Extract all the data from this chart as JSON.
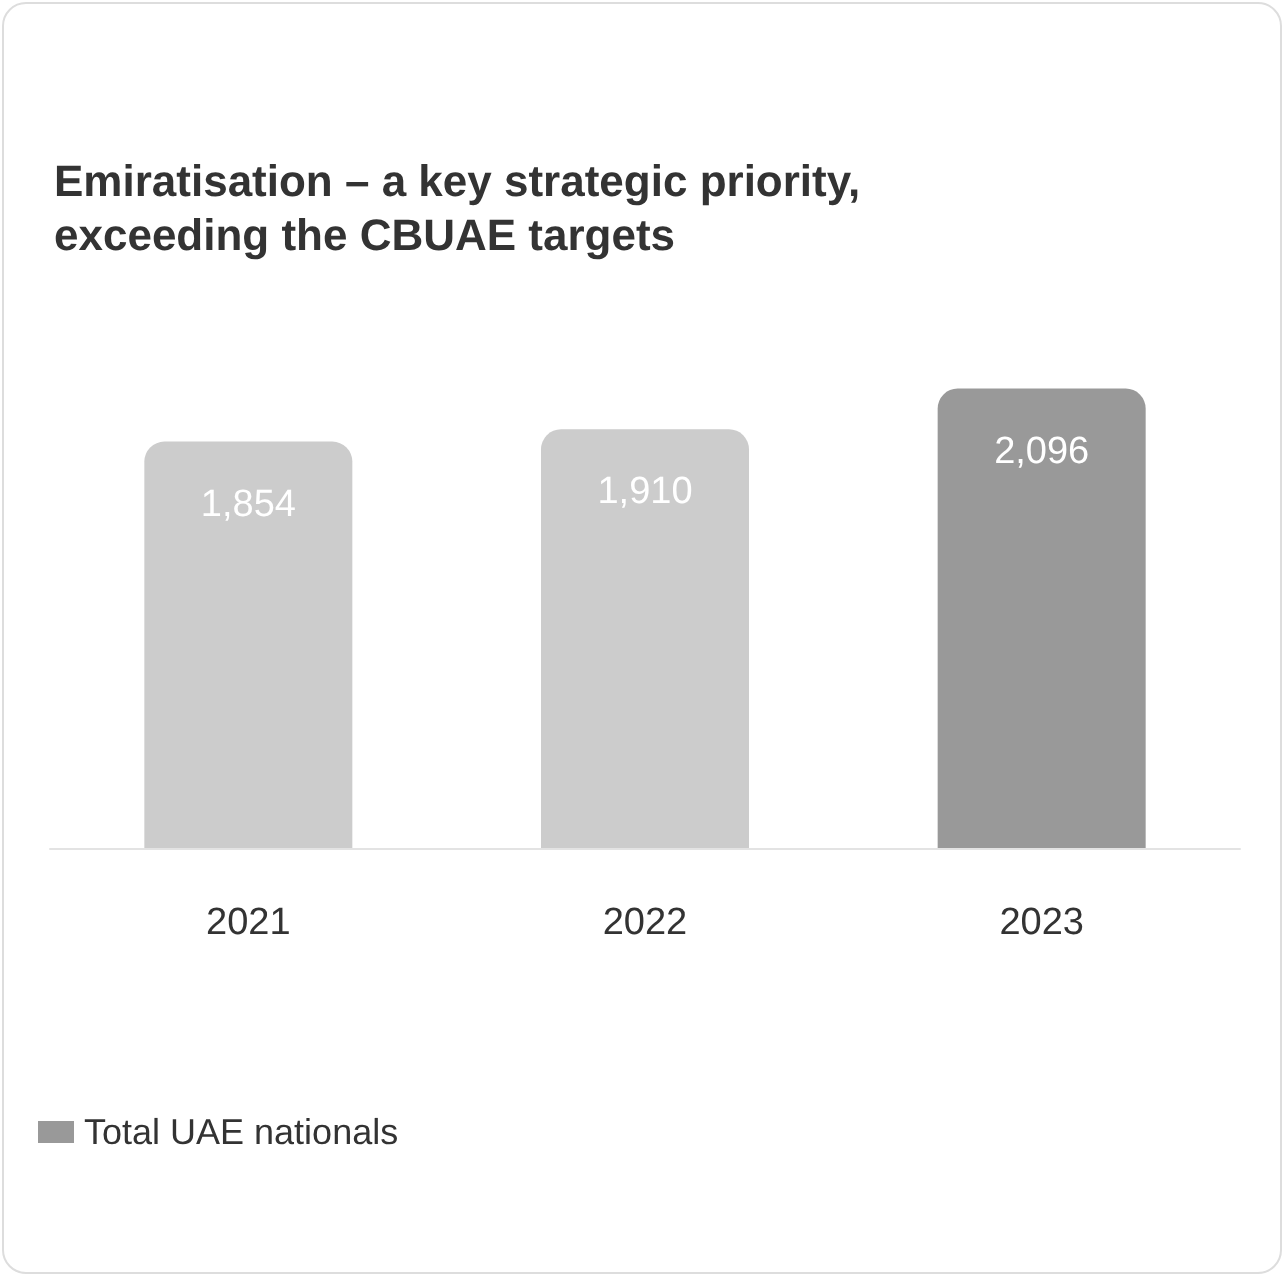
{
  "chart_data": {
    "type": "bar",
    "title": "Emiratisation – a key strategic priority, exceeding the CBUAE targets",
    "categories": [
      "2021",
      "2022",
      "2023"
    ],
    "series": [
      {
        "name": "Total UAE nationals",
        "color": "#999999",
        "colors": [
          "#cccccc",
          "#cccccc",
          "#999999"
        ],
        "values": [
          1854,
          1910,
          2096
        ],
        "value_labels": [
          "1,854",
          "1,910",
          "2,096"
        ]
      }
    ],
    "tick_labels": "x",
    "grid": false,
    "legend": "bottom left"
  }
}
